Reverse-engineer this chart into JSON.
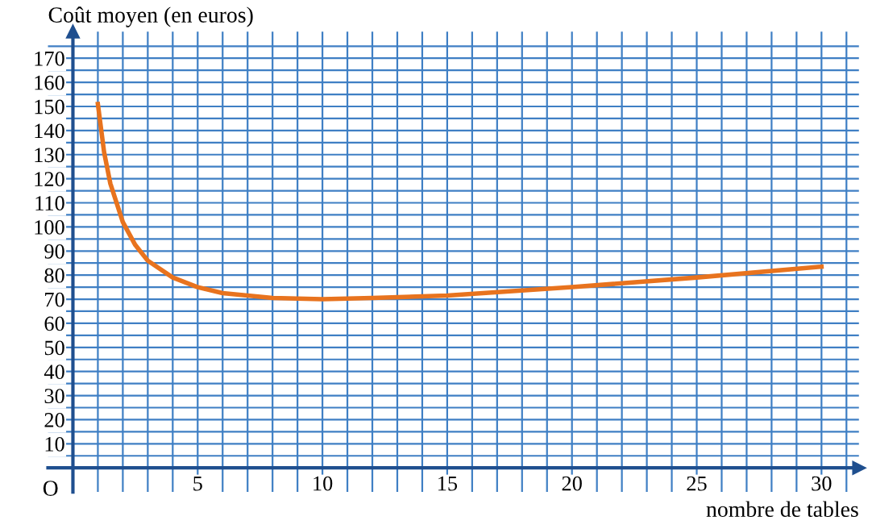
{
  "chart_data": {
    "type": "line",
    "ylabel": "Coût moyen (en euros)",
    "xlabel": "nombre de tables",
    "x": [
      1,
      1.25,
      1.5,
      2,
      2.5,
      3,
      4,
      5,
      6,
      7,
      8,
      10,
      12,
      15,
      20,
      25,
      30
    ],
    "series": [
      {
        "color": "#e8731e",
        "values": [
          151,
          131,
          118,
          102,
          92.5,
          86,
          79,
          75,
          72.5,
          71.5,
          70.5,
          70,
          70.5,
          71.5,
          75,
          79,
          83.5
        ]
      }
    ],
    "xlim": [
      -1,
      31.5
    ],
    "ylim": [
      -10,
      181
    ],
    "xticks": [
      {
        "value": 1,
        "label": null
      },
      {
        "value": 2,
        "label": null
      },
      {
        "value": 3,
        "label": null
      },
      {
        "value": 4,
        "label": null
      },
      5,
      {
        "value": 6,
        "label": null
      },
      {
        "value": 7,
        "label": null
      },
      {
        "value": 8,
        "label": null
      },
      {
        "value": 9,
        "label": null
      },
      10,
      {
        "value": 11,
        "label": null
      },
      {
        "value": 12,
        "label": null
      },
      {
        "value": 13,
        "label": null
      },
      {
        "value": 14,
        "label": null
      },
      15,
      {
        "value": 16,
        "label": null
      },
      {
        "value": 17,
        "label": null
      },
      {
        "value": 18,
        "label": null
      },
      {
        "value": 19,
        "label": null
      },
      20,
      {
        "value": 21,
        "label": null
      },
      {
        "value": 22,
        "label": null
      },
      {
        "value": 23,
        "label": null
      },
      {
        "value": 24,
        "label": null
      },
      25,
      {
        "value": 26,
        "label": null
      },
      {
        "value": 27,
        "label": null
      },
      {
        "value": 28,
        "label": null
      },
      {
        "value": 29,
        "label": null
      },
      30,
      {
        "value": 31,
        "label": null
      }
    ],
    "yticks": [
      {
        "value": 5,
        "label": null
      },
      10,
      {
        "value": 15,
        "label": null
      },
      20,
      {
        "value": 25,
        "label": null
      },
      30,
      {
        "value": 35,
        "label": null
      },
      40,
      {
        "value": 45,
        "label": null
      },
      50,
      {
        "value": 55,
        "label": null
      },
      60,
      {
        "value": 65,
        "label": null
      },
      70,
      {
        "value": 75,
        "label": null
      },
      80,
      {
        "value": 85,
        "label": null
      },
      90,
      {
        "value": 95,
        "label": null
      },
      100,
      {
        "value": 105,
        "label": null
      },
      110,
      {
        "value": 115,
        "label": null
      },
      120,
      {
        "value": 125,
        "label": null
      },
      130,
      {
        "value": 135,
        "label": null
      },
      140,
      {
        "value": 145,
        "label": null
      },
      150,
      {
        "value": 155,
        "label": null
      },
      160,
      {
        "value": 165,
        "label": null
      },
      170,
      {
        "value": 175,
        "label": null
      }
    ],
    "grid": true,
    "annotations": [
      "O"
    ]
  }
}
